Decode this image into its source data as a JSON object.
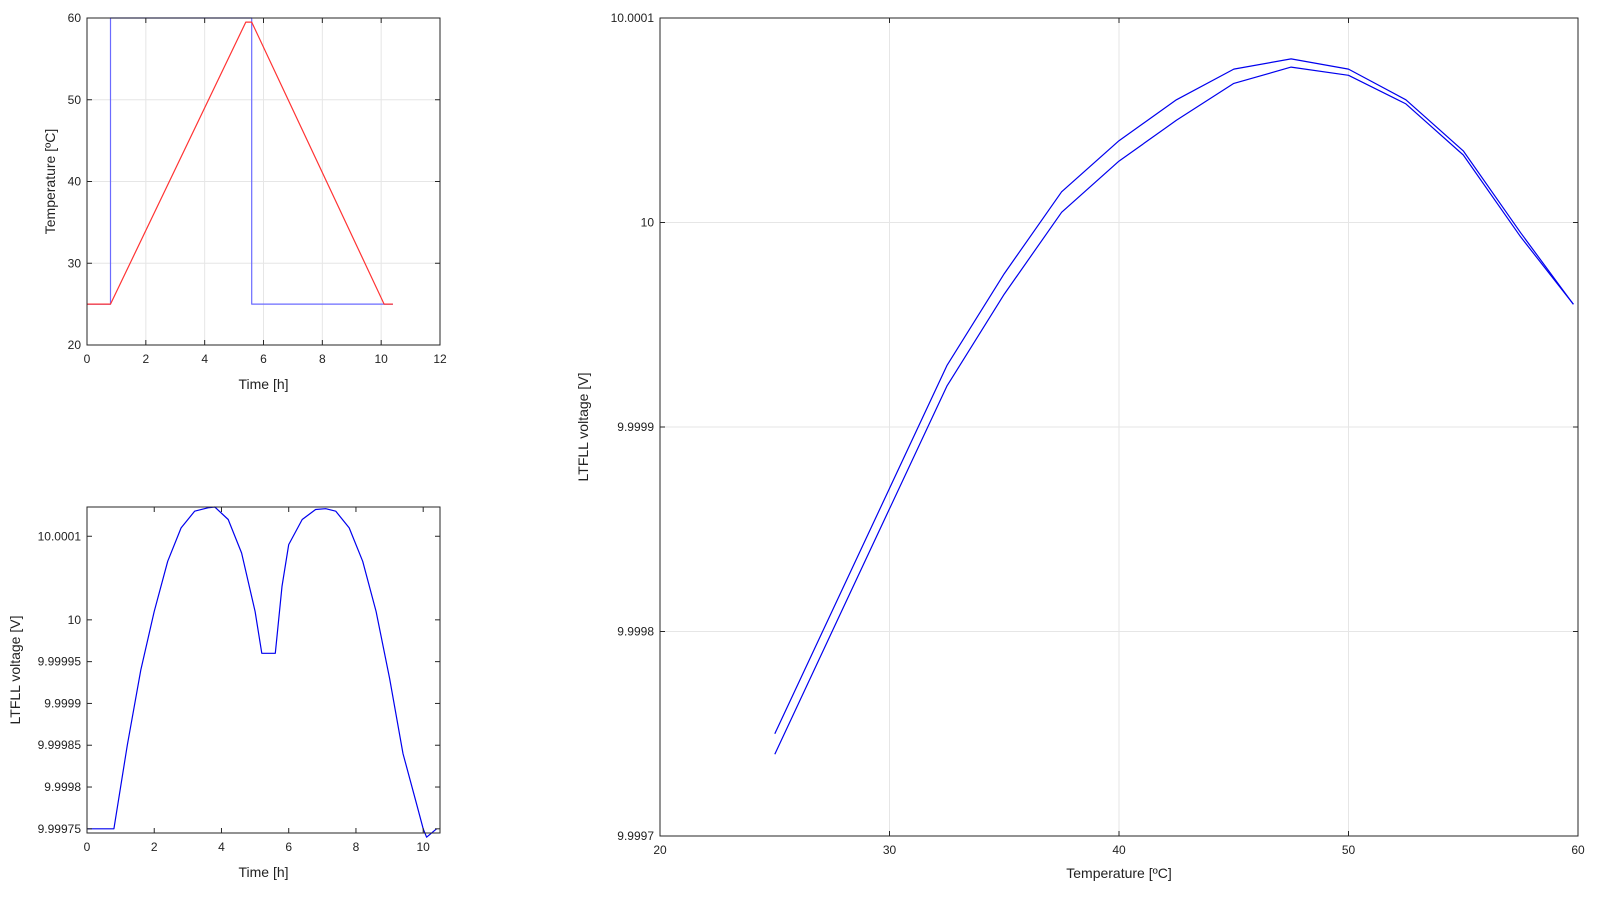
{
  "chart_data": [
    {
      "id": "temp-vs-time",
      "type": "line",
      "title": "",
      "xlabel": "Time [h]",
      "ylabel": "Temperature [ºC]",
      "xlim": [
        0,
        12
      ],
      "ylim": [
        20,
        60
      ],
      "xticks": [
        0,
        2,
        4,
        6,
        8,
        10,
        12
      ],
      "yticks": [
        20,
        30,
        40,
        50,
        60
      ],
      "xtick_labels": [
        "0",
        "2",
        "4",
        "6",
        "8",
        "10",
        "12"
      ],
      "ytick_labels": [
        "20",
        "30",
        "40",
        "50",
        "60"
      ],
      "grid": true,
      "series": [
        {
          "color": "#6b6bff",
          "x": [
            0,
            0.8,
            0.8,
            5.6,
            5.6,
            10.4
          ],
          "y": [
            25,
            25,
            60,
            60,
            25,
            25
          ]
        },
        {
          "color": "#ff3333",
          "x": [
            0,
            0.8,
            5.4,
            5.6,
            10.1,
            10.4
          ],
          "y": [
            25,
            25,
            59.5,
            59.5,
            25,
            25
          ]
        }
      ]
    },
    {
      "id": "voltage-vs-time",
      "type": "line",
      "title": "",
      "xlabel": "Time [h]",
      "ylabel": "LTFLL voltage [V]",
      "xlim": [
        0,
        10.5
      ],
      "ylim": [
        9.999745,
        10.000135
      ],
      "xticks": [
        0,
        2,
        4,
        6,
        8,
        10
      ],
      "yticks": [
        9.99975,
        9.9998,
        9.99985,
        9.9999,
        9.99995,
        10,
        10.0001
      ],
      "xtick_labels": [
        "0",
        "2",
        "4",
        "6",
        "8",
        "10"
      ],
      "ytick_labels": [
        "9.99975",
        "9.9998",
        "9.99985",
        "9.9999",
        "9.99995",
        "10",
        "10.0001"
      ],
      "grid": false,
      "series": [
        {
          "color": "#0000ee",
          "x": [
            0,
            0.4,
            0.8,
            1.2,
            1.6,
            2.0,
            2.4,
            2.8,
            3.2,
            3.6,
            3.8,
            4.2,
            4.6,
            5.0,
            5.2,
            5.4,
            5.6,
            5.8,
            6.0,
            6.4,
            6.8,
            7.1,
            7.4,
            7.8,
            8.2,
            8.6,
            9.0,
            9.4,
            9.8,
            10.0,
            10.1,
            10.4
          ],
          "y": [
            9.99975,
            9.99975,
            9.99975,
            9.99985,
            9.99994,
            10.00001,
            10.00007,
            10.00011,
            10.00013,
            10.000134,
            10.000135,
            10.00012,
            10.00008,
            10.00001,
            9.99996,
            9.99996,
            9.99996,
            10.00004,
            10.00009,
            10.00012,
            10.000132,
            10.000133,
            10.00013,
            10.00011,
            10.00007,
            10.00001,
            9.99993,
            9.99984,
            9.99978,
            9.99975,
            9.99974,
            9.99975
          ]
        }
      ]
    },
    {
      "id": "voltage-vs-temperature",
      "type": "line",
      "title": "",
      "xlabel": "Temperature [ºC]",
      "ylabel": "LTFLL voltage [V]",
      "xlim": [
        20,
        60
      ],
      "ylim": [
        9.9997,
        10.0001
      ],
      "xticks": [
        20,
        30,
        40,
        50,
        60
      ],
      "yticks": [
        9.9997,
        9.9998,
        9.9999,
        10,
        10.0001
      ],
      "xtick_labels": [
        "20",
        "30",
        "40",
        "50",
        "60"
      ],
      "ytick_labels": [
        "9.9997",
        "9.9998",
        "9.9999",
        "10",
        "10.0001"
      ],
      "grid": true,
      "series": [
        {
          "color": "#0000ee",
          "x": [
            25,
            27.5,
            30,
            32.5,
            35,
            37.5,
            40,
            42.5,
            45,
            47.5,
            50,
            52.5,
            55,
            57.5,
            59.8
          ],
          "y": [
            9.99975,
            9.99981,
            9.99987,
            9.99993,
            9.999975,
            10.000015,
            10.00004,
            10.00006,
            10.000075,
            10.00008,
            10.000075,
            10.00006,
            10.000035,
            9.999995,
            9.99996
          ]
        },
        {
          "color": "#0000ee",
          "x": [
            25,
            27.5,
            30,
            32.5,
            35,
            37.5,
            40,
            42.5,
            45,
            47.5,
            50,
            52.5,
            55,
            57.5,
            59.8
          ],
          "y": [
            9.99974,
            9.9998,
            9.99986,
            9.99992,
            9.999965,
            10.000005,
            10.00003,
            10.00005,
            10.000068,
            10.000076,
            10.000072,
            10.000058,
            10.000033,
            9.999993,
            9.99996
          ]
        }
      ]
    }
  ]
}
